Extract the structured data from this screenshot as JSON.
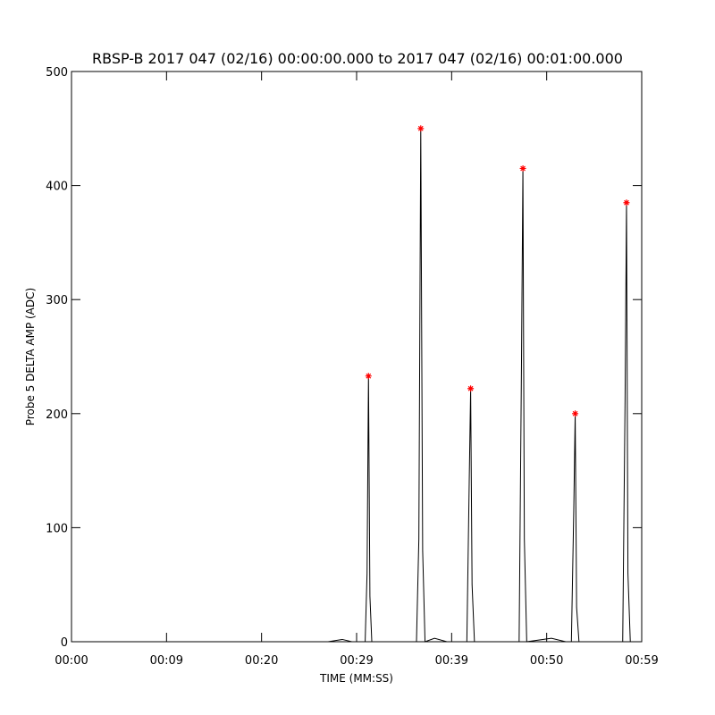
{
  "chart_data": {
    "type": "line",
    "title": "RBSP-B 2017 047 (02/16) 00:00:00.000 to 2017 047 (02/16) 00:01:00.000",
    "xlabel": "TIME (MM:SS)",
    "ylabel": "Probe 5 DELTA AMP (ADC)",
    "xlim": [
      0,
      60
    ],
    "ylim": [
      0,
      500
    ],
    "xticks": [
      {
        "value": 0,
        "label": "00:00"
      },
      {
        "value": 10,
        "label": "00:09"
      },
      {
        "value": 20,
        "label": "00:20"
      },
      {
        "value": 30,
        "label": "00:29"
      },
      {
        "value": 40,
        "label": "00:39"
      },
      {
        "value": 50,
        "label": "00:50"
      },
      {
        "value": 60,
        "label": "00:59"
      }
    ],
    "yticks": [
      0,
      100,
      200,
      300,
      400,
      500
    ],
    "series": [
      {
        "color": "#000000",
        "x": [
          0,
          27,
          28.5,
          29.5,
          30.9,
          31.1,
          31.25,
          31.4,
          31.6,
          36.3,
          36.55,
          36.75,
          36.95,
          37.2,
          38.2,
          39.5,
          41.6,
          41.85,
          42.0,
          42.15,
          42.4,
          47.1,
          47.35,
          47.5,
          47.65,
          47.9,
          50.5,
          52.0,
          52.6,
          52.85,
          53.0,
          53.15,
          53.4,
          58.0,
          58.25,
          58.4,
          58.55,
          58.8,
          60
        ],
        "values": [
          0,
          0,
          2,
          0,
          0,
          60,
          233,
          40,
          0,
          0,
          90,
          450,
          80,
          0,
          3,
          0,
          0,
          140,
          222,
          50,
          0,
          0,
          245,
          415,
          90,
          0,
          3,
          0,
          0,
          115,
          200,
          30,
          0,
          0,
          212,
          385,
          60,
          0,
          0
        ]
      },
      {
        "color": "#ff0000",
        "marker": "asterisk",
        "x": [
          31.25,
          36.75,
          42.0,
          47.5,
          53.0,
          58.4
        ],
        "values": [
          233,
          450,
          222,
          415,
          200,
          385
        ]
      }
    ]
  }
}
